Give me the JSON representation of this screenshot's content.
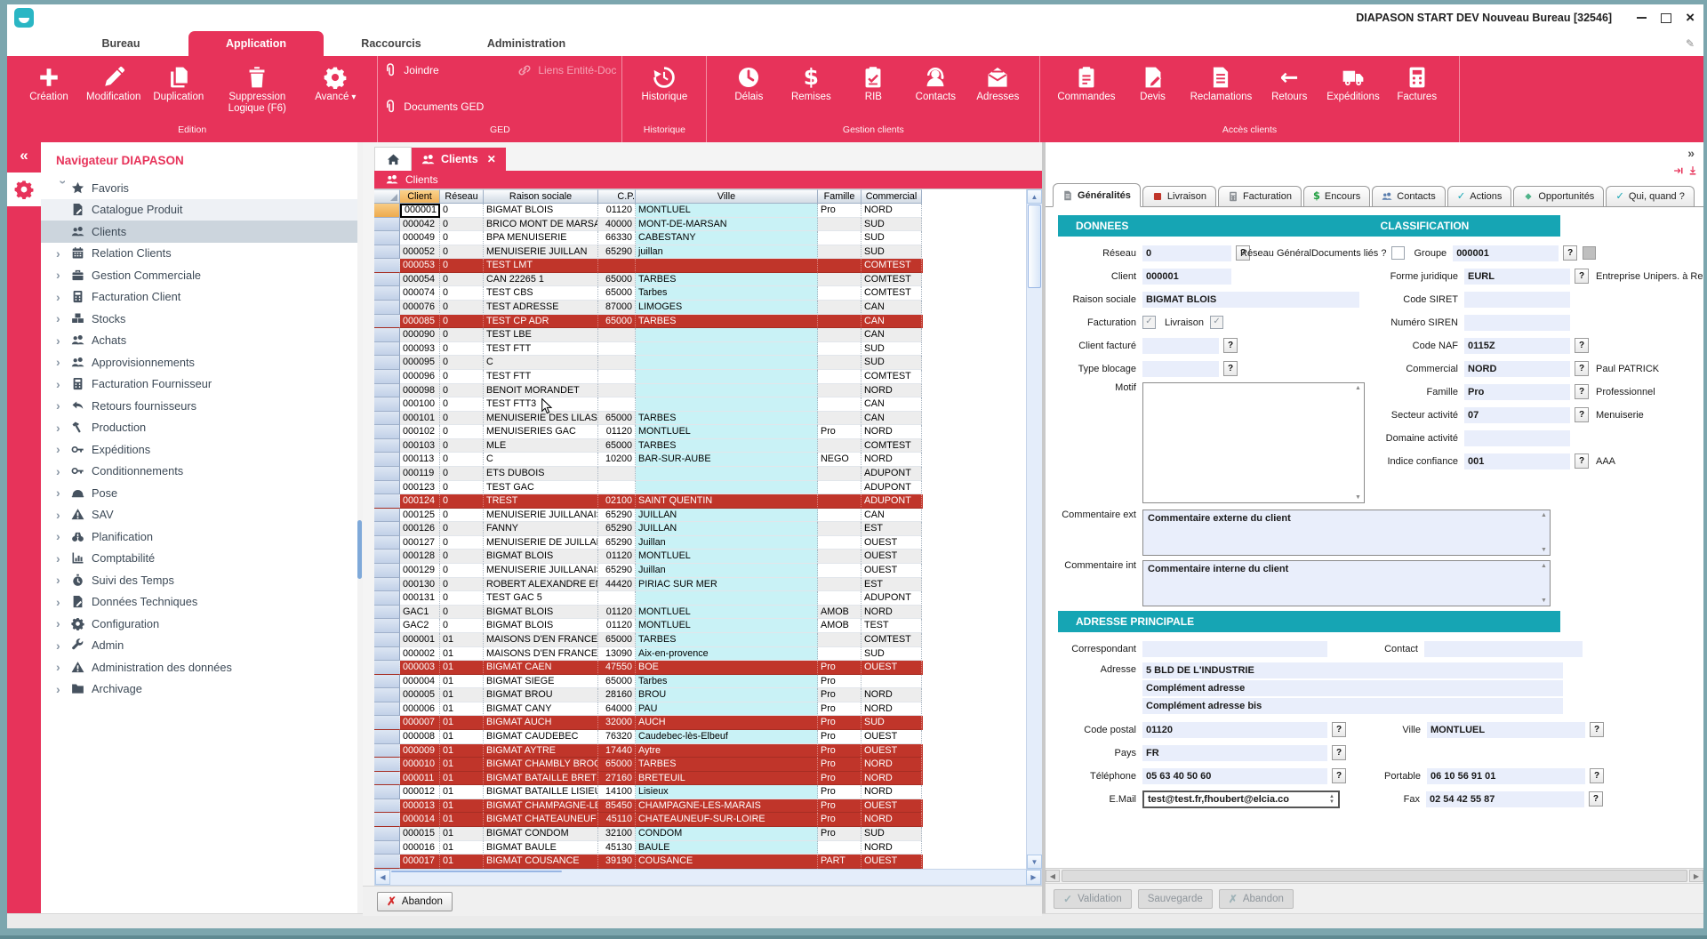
{
  "window": {
    "title": "DIAPASON START DEV Nouveau Bureau [32546]"
  },
  "colors": {
    "ribbon_red": "#e7335a",
    "row_red": "#c0352a",
    "teal_header": "#16a5b4",
    "cyan_cell": "#c9f2f6",
    "sort_orange": "#f0b057",
    "frame_teal": "#7ca6ae",
    "input_blue": "#e9eefb"
  },
  "menu_tabs": [
    {
      "label": "Bureau",
      "active": false
    },
    {
      "label": "Application",
      "active": true
    },
    {
      "label": "Raccourcis",
      "active": false
    },
    {
      "label": "Administration",
      "active": false
    }
  ],
  "ribbon": {
    "groups": [
      {
        "label": "Edition",
        "layout": "large",
        "buttons": [
          {
            "label": "Création",
            "icon": "plus-icon"
          },
          {
            "label": "Modification",
            "icon": "pencil-icon"
          },
          {
            "label": "Duplication",
            "icon": "copy-icon"
          },
          {
            "label": "Suppression Logique (F6)",
            "icon": "trash-icon"
          },
          {
            "label": "Avancé",
            "icon": "gear-icon",
            "caret": true
          }
        ]
      },
      {
        "label": "GED",
        "layout": "ged",
        "buttons": [
          {
            "label": "Joindre",
            "icon": "paperclip-icon"
          },
          {
            "label": "Liens Entité-Doc",
            "icon": "link-icon",
            "dim": true
          },
          {
            "label": "Documents GED",
            "icon": "paperclip-icon"
          }
        ]
      },
      {
        "label": "Historique",
        "layout": "large",
        "buttons": [
          {
            "label": "Historique",
            "icon": "history-icon"
          }
        ]
      },
      {
        "label": "Gestion clients",
        "layout": "large",
        "buttons": [
          {
            "label": "Délais",
            "icon": "clock-icon"
          },
          {
            "label": "Remises",
            "icon": "dollar-icon"
          },
          {
            "label": "RIB",
            "icon": "clipboard-check-icon"
          },
          {
            "label": "Contacts",
            "icon": "headset-icon"
          },
          {
            "label": "Adresses",
            "icon": "mail-open-icon"
          }
        ]
      },
      {
        "label": "Accès clients",
        "layout": "large",
        "buttons": [
          {
            "label": "Commandes",
            "icon": "clipboard-list-icon"
          },
          {
            "label": "Devis",
            "icon": "doc-pencil-icon"
          },
          {
            "label": "Reclamations",
            "icon": "doc-lines-icon"
          },
          {
            "label": "Retours",
            "icon": "arrow-left-icon"
          },
          {
            "label": "Expéditions",
            "icon": "truck-icon"
          },
          {
            "label": "Factures",
            "icon": "calculator-icon"
          }
        ]
      }
    ]
  },
  "sidebar": {
    "title": "Navigateur DIAPASON",
    "favorites": {
      "label": "Favoris",
      "icon": "star-icon",
      "children": [
        {
          "label": "Catalogue Produit",
          "icon": "doc-pencil-icon",
          "selected": false
        },
        {
          "label": "Clients",
          "icon": "people-icon",
          "selected": true
        }
      ]
    },
    "items": [
      {
        "label": "Relation Clients",
        "icon": "calendar-icon"
      },
      {
        "label": "Gestion Commerciale",
        "icon": "briefcase-icon"
      },
      {
        "label": "Facturation Client",
        "icon": "calculator-icon"
      },
      {
        "label": "Stocks",
        "icon": "stock-icon"
      },
      {
        "label": "Achats",
        "icon": "people-icon"
      },
      {
        "label": "Approvisionnements",
        "icon": "people-icon"
      },
      {
        "label": "Facturation Fournisseur",
        "icon": "calculator-icon"
      },
      {
        "label": "Retours fournisseurs",
        "icon": "return-arrow-icon"
      },
      {
        "label": "Production",
        "icon": "hammer-icon"
      },
      {
        "label": "Expéditions",
        "icon": "key-icon"
      },
      {
        "label": "Conditionnements",
        "icon": "key-icon"
      },
      {
        "label": "Pose",
        "icon": "helmet-icon"
      },
      {
        "label": "SAV",
        "icon": "warning-icon"
      },
      {
        "label": "Planification",
        "icon": "binoculars-icon"
      },
      {
        "label": "Comptabilité",
        "icon": "chart-icon"
      },
      {
        "label": "Suivi des Temps",
        "icon": "stopwatch-icon"
      },
      {
        "label": "Données Techniques",
        "icon": "doc-pencil-icon"
      },
      {
        "label": "Configuration",
        "icon": "gear-icon"
      },
      {
        "label": "Admin",
        "icon": "wrench-icon"
      },
      {
        "label": "Administration des données",
        "icon": "warning-icon"
      },
      {
        "label": "Archivage",
        "icon": "folder-icon"
      }
    ]
  },
  "tabs": {
    "clients_tab": "Clients",
    "panel_title": "Clients"
  },
  "table": {
    "columns": [
      "Client",
      "Réseau",
      "Raison sociale",
      "C.P.",
      "Ville",
      "Famille",
      "Commercial"
    ],
    "rows": [
      [
        "000001",
        "0",
        "BIGMAT BLOIS",
        "01120",
        "MONTLUEL",
        "Pro",
        "NORD",
        0
      ],
      [
        "000042",
        "0",
        "BRICO MONT DE MARSAN",
        "40000",
        "MONT-DE-MARSAN",
        "",
        "SUD",
        0
      ],
      [
        "000049",
        "0",
        "BPA MENUISERIE",
        "66330",
        "CABESTANY",
        "",
        "SUD",
        0
      ],
      [
        "000052",
        "0",
        "MENUISERIE JUILLAN",
        "65290",
        "juillan",
        "",
        "SUD",
        0
      ],
      [
        "000053",
        "0",
        "TEST LMT",
        "",
        "",
        "",
        "COMTEST",
        1
      ],
      [
        "000054",
        "0",
        "CAN 22265 1",
        "65000",
        "TARBES",
        "",
        "COMTEST",
        0
      ],
      [
        "000074",
        "0",
        "TEST CBS",
        "65000",
        "Tarbes",
        "",
        "COMTEST",
        0
      ],
      [
        "000076",
        "0",
        "TEST ADRESSE",
        "87000",
        "LIMOGES",
        "",
        "CAN",
        0
      ],
      [
        "000085",
        "0",
        "TEST CP ADR",
        "65000",
        "TARBES",
        "",
        "CAN",
        1
      ],
      [
        "000090",
        "0",
        "TEST LBE",
        "",
        "",
        "",
        "CAN",
        0
      ],
      [
        "000093",
        "0",
        "TEST FTT",
        "",
        "",
        "",
        "SUD",
        0
      ],
      [
        "000095",
        "0",
        "C",
        "",
        "",
        "",
        "SUD",
        0
      ],
      [
        "000096",
        "0",
        "TEST FTT",
        "",
        "",
        "",
        "COMTEST",
        0
      ],
      [
        "000098",
        "0",
        "BENOIT MORANDET",
        "",
        "",
        "",
        "NORD",
        0
      ],
      [
        "000100",
        "0",
        "TEST FTT3",
        "",
        "",
        "",
        "CAN",
        0
      ],
      [
        "000101",
        "0",
        "MENUISERIE DES LILAS",
        "65000",
        "TARBES",
        "",
        "CAN",
        0
      ],
      [
        "000102",
        "0",
        "MENUISERIES GAC",
        "01120",
        "MONTLUEL",
        "Pro",
        "NORD",
        0
      ],
      [
        "000103",
        "0",
        "MLE",
        "65000",
        "TARBES",
        "",
        "COMTEST",
        0
      ],
      [
        "000113",
        "0",
        "C",
        "10200",
        "BAR-SUR-AUBE",
        "NEGO",
        "NORD",
        0
      ],
      [
        "000119",
        "0",
        "ETS DUBOIS",
        "",
        "",
        "",
        "ADUPONT",
        0
      ],
      [
        "000123",
        "0",
        "TEST GAC",
        "",
        "",
        "",
        "ADUPONT",
        0
      ],
      [
        "000124",
        "0",
        "TREST",
        "02100",
        "SAINT QUENTIN",
        "",
        "ADUPONT",
        1
      ],
      [
        "000125",
        "0",
        "MENUISERIE JUILLANAISE",
        "65290",
        "JUILLAN",
        "",
        "CAN",
        0
      ],
      [
        "000126",
        "0",
        "FANNY",
        "65290",
        "JUILLAN",
        "",
        "EST",
        0
      ],
      [
        "000127",
        "0",
        "MENUISERIE DE JUILLAN",
        "65290",
        "Juillan",
        "",
        "OUEST",
        0
      ],
      [
        "000128",
        "0",
        "BIGMAT BLOIS",
        "01120",
        "MONTLUEL",
        "",
        "OUEST",
        0
      ],
      [
        "000129",
        "0",
        "MENUISERIE JUILLANAISE",
        "65290",
        "Juillan",
        "",
        "OUEST",
        0
      ],
      [
        "000130",
        "0",
        "ROBERT ALEXANDRE ENT",
        "44420",
        "PIRIAC SUR MER",
        "",
        "EST",
        0
      ],
      [
        "000131",
        "0",
        "TEST GAC 5",
        "",
        "",
        "",
        "ADUPONT",
        0
      ],
      [
        "GAC1",
        "0",
        "BIGMAT BLOIS",
        "01120",
        "MONTLUEL",
        "AMOB",
        "NORD",
        0
      ],
      [
        "GAC2",
        "0",
        "BIGMAT BLOIS",
        "01120",
        "MONTLUEL",
        "AMOB",
        "TEST",
        0
      ],
      [
        "000001",
        "01",
        "MAISONS D'EN FRANCE",
        "65000",
        "TARBES",
        "",
        "COMTEST",
        0
      ],
      [
        "000002",
        "01",
        "MAISONS D'EN FRANCE",
        "13090",
        "Aix-en-provence",
        "",
        "SUD",
        0
      ],
      [
        "000003",
        "01",
        "BIGMAT CAEN",
        "47550",
        "BOE",
        "Pro",
        "OUEST",
        1
      ],
      [
        "000004",
        "01",
        "BIGMAT SIEGE",
        "65000",
        "Tarbes",
        "Pro",
        "",
        0
      ],
      [
        "000005",
        "01",
        "BIGMAT BROU",
        "28160",
        "BROU",
        "Pro",
        "NORD",
        0
      ],
      [
        "000006",
        "01",
        "BIGMAT CANY",
        "64000",
        "PAU",
        "Pro",
        "NORD",
        0
      ],
      [
        "000007",
        "01",
        "BIGMAT AUCH",
        "32000",
        "AUCH",
        "Pro",
        "SUD",
        1
      ],
      [
        "000008",
        "01",
        "BIGMAT CAUDEBEC",
        "76320",
        "Caudebec-lès-Elbeuf",
        "Pro",
        "OUEST",
        0
      ],
      [
        "000009",
        "01",
        "BIGMAT AYTRE",
        "17440",
        "Aytre",
        "Pro",
        "OUEST",
        1
      ],
      [
        "000010",
        "01",
        "BIGMAT CHAMBLY BROC",
        "65000",
        "TARBES",
        "Pro",
        "NORD",
        1
      ],
      [
        "000011",
        "01",
        "BIGMAT BATAILLE BRET",
        "27160",
        "BRETEUIL",
        "Pro",
        "NORD",
        1
      ],
      [
        "000012",
        "01",
        "BIGMAT BATAILLE LISIEUX",
        "14100",
        "Lisieux",
        "Pro",
        "NORD",
        0
      ],
      [
        "000013",
        "01",
        "BIGMAT CHAMPAGNE-LES",
        "85450",
        "CHAMPAGNE-LES-MARAIS",
        "Pro",
        "OUEST",
        1
      ],
      [
        "000014",
        "01",
        "BIGMAT CHATEAUNEUF",
        "45110",
        "CHATEAUNEUF-SUR-LOIRE",
        "Pro",
        "NORD",
        1
      ],
      [
        "000015",
        "01",
        "BIGMAT CONDOM",
        "32100",
        "CONDOM",
        "Pro",
        "SUD",
        0
      ],
      [
        "000016",
        "01",
        "BIGMAT BAULE",
        "45130",
        "BAULE",
        "",
        "NORD",
        0
      ],
      [
        "000017",
        "01",
        "BIGMAT COUSANCE",
        "39190",
        "COUSANCE",
        "PART",
        "OUEST",
        1
      ]
    ]
  },
  "details": {
    "tabs": [
      {
        "label": "Généralités",
        "icon": "doc-lines-icon",
        "color": "#8a8f94",
        "active": true
      },
      {
        "label": "Livraison",
        "icon": "box-icon",
        "color": "#c0352a",
        "active": false
      },
      {
        "label": "Facturation",
        "icon": "calculator-icon",
        "color": "#8a8f94",
        "active": false
      },
      {
        "label": "Encours",
        "icon": "dollar-icon",
        "color": "#1e9e3e",
        "active": false
      },
      {
        "label": "Contacts",
        "icon": "people-icon",
        "color": "#5b7fae",
        "active": false
      },
      {
        "label": "Actions",
        "icon": "check-icon",
        "color": "#18a7b5",
        "active": false
      },
      {
        "label": "Opportunités",
        "icon": "diamond-icon",
        "color": "#4fb389",
        "active": false
      },
      {
        "label": "Qui, quand ?",
        "icon": "check-icon",
        "color": "#18a7b5",
        "active": false
      }
    ],
    "donnees_title": "DONNEES",
    "classification_title": "CLASSIFICATION",
    "adresse_title": "ADRESSE PRINCIPALE",
    "reseau_label": "Réseau",
    "reseau_value": "0",
    "client_label": "Client",
    "client_value": "000001",
    "raison_label": "Raison sociale",
    "raison_value": "BIGMAT BLOIS",
    "facturation_label": "Facturation",
    "facturation_checked": true,
    "livraison_label": "Livraison",
    "livraison_checked": true,
    "client_facture_label": "Client facturé",
    "client_facture_value": "",
    "type_blocage_label": "Type blocage",
    "type_blocage_value": "",
    "motif_label": "Motif",
    "motif_value": "",
    "commentaire_ext_label": "Commentaire ext",
    "commentaire_ext_value": "Commentaire externe du client",
    "commentaire_int_label": "Commentaire int",
    "commentaire_int_value": "Commentaire interne du client",
    "reseau_general_label": "Réseau GénéralDocuments liés ?",
    "documents_lies_checked": false,
    "groupe_label": "Groupe",
    "groupe_value": "000001",
    "forme_label": "Forme juridique",
    "forme_value": "EURL",
    "forme_note": "Entreprise Unipers. à Resp. Limitée",
    "siret_label": "Code SIRET",
    "siret_value": "",
    "siren_label": "Numéro SIREN",
    "siren_value": "",
    "naf_label": "Code NAF",
    "naf_value": "0115Z",
    "commercial_label": "Commercial",
    "commercial_value": "NORD",
    "commercial_note": "Paul PATRICK",
    "famille_label": "Famille",
    "famille_value": "Pro",
    "famille_note": "Professionnel",
    "secteur_label": "Secteur activité",
    "secteur_value": "07",
    "secteur_note": "Menuiserie",
    "domaine_label": "Domaine activité",
    "domaine_value": "",
    "indice_label": "Indice confiance",
    "indice_value": "001",
    "indice_note": "AAA",
    "correspondant_label": "Correspondant",
    "correspondant_value": "",
    "contact_label": "Contact",
    "contact_value": "",
    "adresse_label": "Adresse",
    "adresse_value": "5 BLD DE L'INDUSTRIE",
    "adresse_c1": "Complément adresse",
    "adresse_c2": "Complément adresse bis",
    "cp_label": "Code postal",
    "cp_value": "01120",
    "ville_label": "Ville",
    "ville_value": "MONTLUEL",
    "pays_label": "Pays",
    "pays_value": "FR",
    "tel_label": "Téléphone",
    "tel_value": "05 63 40 50 60",
    "portable_label": "Portable",
    "portable_value": "06 10 56 91 01",
    "email_label": "E.Mail",
    "email_value": "test@test.fr,fhoubert@elcia.co",
    "fax_label": "Fax",
    "fax_value": "02 54 42 55 87"
  },
  "footer": {
    "abandon_left": "Abandon",
    "validation": "Validation",
    "sauvegarde": "Sauvegarde",
    "abandon_right": "Abandon"
  }
}
